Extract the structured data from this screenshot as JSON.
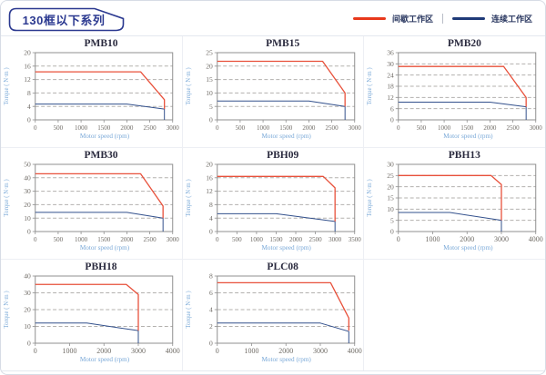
{
  "header": {
    "title": "130框以下系列",
    "legend": [
      {
        "label": "间歇工作区",
        "color": "#e8381c"
      },
      {
        "label": "连续工作区",
        "color": "#1f3a78"
      }
    ]
  },
  "style": {
    "accent_navy": "#2b3990",
    "plot_border": "#8f8f8f",
    "grid_color": "#b3b1ae",
    "tick_color": "#6e6a64",
    "axis_label_color": "#7aa9d8",
    "intermittent_color": "#e8503a",
    "continuous_color": "#32508c"
  },
  "chart_data": [
    {
      "type": "line",
      "title": "PMB10",
      "xlabel": "Motor speed (rpm)",
      "ylabel": "Torque ( N·m )",
      "xlim": [
        0,
        3000
      ],
      "xtick_step": 500,
      "ylim": [
        0,
        20
      ],
      "ytick_step": 4,
      "series": [
        {
          "name": "间歇工作区",
          "color": "#e8503a",
          "points": [
            [
              0,
              14.3
            ],
            [
              2300,
              14.3
            ],
            [
              2820,
              6
            ],
            [
              2820,
              3.2
            ]
          ]
        },
        {
          "name": "连续工作区",
          "color": "#32508c",
          "points": [
            [
              0,
              4.7
            ],
            [
              2000,
              4.7
            ],
            [
              2820,
              3.2
            ],
            [
              2820,
              0
            ]
          ]
        }
      ]
    },
    {
      "type": "line",
      "title": "PMB15",
      "xlabel": "Motor speed (rpm)",
      "ylabel": "Torque ( N·m )",
      "xlim": [
        0,
        3000
      ],
      "xtick_step": 500,
      "ylim": [
        0,
        25
      ],
      "ytick_step": 5,
      "series": [
        {
          "name": "间歇工作区",
          "color": "#e8503a",
          "points": [
            [
              0,
              21.8
            ],
            [
              2300,
              21.8
            ],
            [
              2790,
              10
            ],
            [
              2790,
              5
            ]
          ]
        },
        {
          "name": "连续工作区",
          "color": "#32508c",
          "points": [
            [
              0,
              7
            ],
            [
              2000,
              7
            ],
            [
              2790,
              5
            ],
            [
              2790,
              0
            ]
          ]
        }
      ]
    },
    {
      "type": "line",
      "title": "PMB20",
      "xlabel": "Motor speed (rpm)",
      "ylabel": "Torque ( N·m )",
      "xlim": [
        0,
        3000
      ],
      "xtick_step": 500,
      "ylim": [
        0,
        36
      ],
      "ytick_step": 6,
      "series": [
        {
          "name": "间歇工作区",
          "color": "#e8503a",
          "points": [
            [
              0,
              28.6
            ],
            [
              2300,
              28.6
            ],
            [
              2790,
              12
            ],
            [
              2790,
              7
            ]
          ]
        },
        {
          "name": "连续工作区",
          "color": "#32508c",
          "points": [
            [
              0,
              9.5
            ],
            [
              2000,
              9.5
            ],
            [
              2790,
              7
            ],
            [
              2790,
              0
            ]
          ]
        }
      ]
    },
    {
      "type": "line",
      "title": "PMB30",
      "xlabel": "Motor speed (rpm)",
      "ylabel": "Torque ( N·m )",
      "xlim": [
        0,
        3000
      ],
      "xtick_step": 500,
      "ylim": [
        0,
        50
      ],
      "ytick_step": 10,
      "series": [
        {
          "name": "间歇工作区",
          "color": "#e8503a",
          "points": [
            [
              0,
              43
            ],
            [
              2300,
              43
            ],
            [
              2790,
              19
            ],
            [
              2790,
              10
            ]
          ]
        },
        {
          "name": "连续工作区",
          "color": "#32508c",
          "points": [
            [
              0,
              14.3
            ],
            [
              2000,
              14.3
            ],
            [
              2790,
              10
            ],
            [
              2790,
              0
            ]
          ]
        }
      ]
    },
    {
      "type": "line",
      "title": "PBH09",
      "xlabel": "Motor speed (rpm)",
      "ylabel": "Torque ( N·m )",
      "xlim": [
        0,
        3500
      ],
      "xtick_step": 500,
      "ylim": [
        0,
        20
      ],
      "ytick_step": 4,
      "series": [
        {
          "name": "间歇工作区",
          "color": "#e8503a",
          "points": [
            [
              0,
              16.4
            ],
            [
              2700,
              16.4
            ],
            [
              3000,
              13
            ],
            [
              3000,
              3
            ]
          ]
        },
        {
          "name": "连续工作区",
          "color": "#32508c",
          "points": [
            [
              0,
              5.3
            ],
            [
              1500,
              5.3
            ],
            [
              3000,
              3
            ],
            [
              3000,
              0
            ]
          ]
        }
      ]
    },
    {
      "type": "line",
      "title": "PBH13",
      "xlabel": "Motor speed (rpm)",
      "ylabel": "Torque ( N·m )",
      "xlim": [
        0,
        4000
      ],
      "xtick_step": 1000,
      "ylim": [
        0,
        30
      ],
      "ytick_step": 5,
      "series": [
        {
          "name": "间歇工作区",
          "color": "#e8503a",
          "points": [
            [
              0,
              25
            ],
            [
              2700,
              25
            ],
            [
              3000,
              21
            ],
            [
              3000,
              5
            ]
          ]
        },
        {
          "name": "连续工作区",
          "color": "#32508c",
          "points": [
            [
              0,
              8.5
            ],
            [
              1500,
              8.5
            ],
            [
              3000,
              5
            ],
            [
              3000,
              0
            ]
          ]
        }
      ]
    },
    {
      "type": "line",
      "title": "PBH18",
      "xlabel": "Motor speed (rpm)",
      "ylabel": "Torque ( N·m )",
      "xlim": [
        0,
        4000
      ],
      "xtick_step": 1000,
      "ylim": [
        0,
        40
      ],
      "ytick_step": 10,
      "series": [
        {
          "name": "间歇工作区",
          "color": "#e8503a",
          "points": [
            [
              0,
              35
            ],
            [
              2650,
              35
            ],
            [
              3000,
              29
            ],
            [
              3000,
              7.5
            ]
          ]
        },
        {
          "name": "连续工作区",
          "color": "#32508c",
          "points": [
            [
              0,
              12
            ],
            [
              1500,
              12
            ],
            [
              3000,
              7.5
            ],
            [
              3000,
              0
            ]
          ]
        }
      ]
    },
    {
      "type": "line",
      "title": "PLC08",
      "xlabel": "Motor speed (rpm)",
      "ylabel": "Torque ( N·m )",
      "xlim": [
        0,
        4000
      ],
      "xtick_step": 1000,
      "ylim": [
        0,
        8
      ],
      "ytick_step": 2,
      "series": [
        {
          "name": "间歇工作区",
          "color": "#e8503a",
          "points": [
            [
              0,
              7.2
            ],
            [
              3300,
              7.2
            ],
            [
              3830,
              3
            ],
            [
              3830,
              1.5
            ]
          ]
        },
        {
          "name": "连续工作区",
          "color": "#32508c",
          "points": [
            [
              0,
              2.4
            ],
            [
              3000,
              2.4
            ],
            [
              3830,
              1.4
            ],
            [
              3830,
              0
            ]
          ]
        }
      ]
    }
  ]
}
